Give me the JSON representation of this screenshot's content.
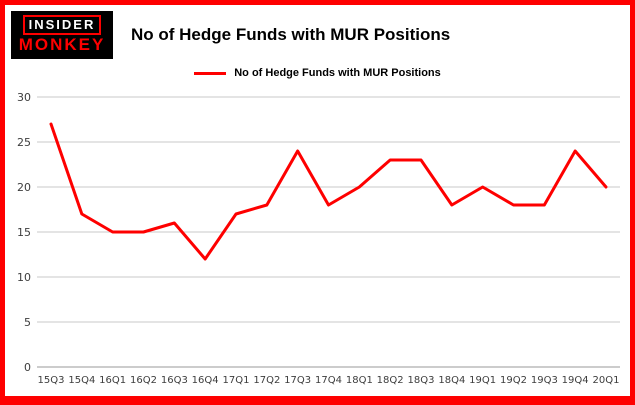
{
  "brand": {
    "line1": "INSIDER",
    "line2": "MONKEY"
  },
  "header": {
    "title": "No of Hedge Funds with MUR Positions"
  },
  "legend": {
    "label": "No of Hedge Funds with MUR Positions"
  },
  "colors": {
    "accent": "#fe0000",
    "border": "#fe0000",
    "grid": "#c9c9c9",
    "axis_text": "#3d3d3d"
  },
  "chart_data": {
    "type": "line",
    "title": "No of Hedge Funds with MUR Positions",
    "xlabel": "",
    "ylabel": "",
    "categories": [
      "15Q3",
      "15Q4",
      "16Q1",
      "16Q2",
      "16Q3",
      "16Q4",
      "17Q1",
      "17Q2",
      "17Q3",
      "17Q4",
      "18Q1",
      "18Q2",
      "18Q3",
      "18Q4",
      "19Q1",
      "19Q2",
      "19Q3",
      "19Q4",
      "20Q1"
    ],
    "values": [
      27,
      17,
      15,
      15,
      16,
      12,
      17,
      18,
      24,
      18,
      20,
      23,
      23,
      18,
      20,
      18,
      18,
      24,
      20
    ],
    "ylim": [
      0,
      30
    ],
    "yticks": [
      0,
      5,
      10,
      15,
      20,
      25,
      30
    ],
    "grid": true,
    "legend_position": "top",
    "series_color": "#fe0000"
  }
}
